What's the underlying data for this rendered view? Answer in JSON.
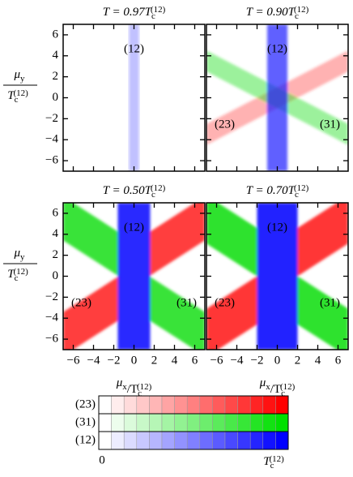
{
  "chart_data": [
    {
      "type": "heatmap",
      "title": [
        "T = 0.97T",
        "c",
        "(12)"
      ],
      "regions": [
        "(12)"
      ],
      "xlim": [
        -7,
        7
      ],
      "ylim": [
        -7,
        7
      ],
      "yticks": [
        {
          "value": -6,
          "label": "−6"
        },
        {
          "value": -4,
          "label": "−4"
        },
        {
          "value": -2,
          "label": "−2"
        },
        0,
        2,
        4,
        6
      ],
      "ylabel": {
        "top": [
          "μ",
          "y"
        ],
        "bottom": [
          "T",
          "c",
          "(12)"
        ]
      }
    },
    {
      "type": "heatmap",
      "title": [
        "T = 0.90T",
        "c",
        "(12)"
      ],
      "regions": [
        "(12)",
        "(23)",
        "(31)"
      ],
      "xlim": [
        -7,
        7
      ],
      "ylim": [
        -7,
        7
      ]
    },
    {
      "type": "heatmap",
      "title": [
        "T = 0.50T",
        "c",
        "(12)"
      ],
      "regions": [
        "(12)",
        "(23)",
        "(31)"
      ],
      "xlim": [
        -7,
        7
      ],
      "ylim": [
        -7,
        7
      ],
      "xticks": [
        {
          "value": -6,
          "label": "−6"
        },
        {
          "value": -4,
          "label": "−4"
        },
        {
          "value": -2,
          "label": "−2"
        },
        0,
        2,
        4,
        6
      ],
      "yticks": [
        {
          "value": -6,
          "label": "−6"
        },
        {
          "value": -4,
          "label": "−4"
        },
        {
          "value": -2,
          "label": "−2"
        },
        0,
        2,
        4,
        6
      ],
      "xlabel": [
        "μ",
        "x",
        "/T",
        "c",
        "(12)"
      ],
      "ylabel": {
        "top": [
          "μ",
          "y"
        ],
        "bottom": [
          "T",
          "c",
          "(12)"
        ]
      }
    },
    {
      "type": "heatmap",
      "title": [
        "T = 0.70T",
        "c",
        "(12)"
      ],
      "regions": [
        "(12)",
        "(23)",
        "(31)"
      ],
      "xlim": [
        -7,
        7
      ],
      "ylim": [
        -7,
        7
      ],
      "xticks": [
        {
          "value": -6,
          "label": "−6"
        },
        {
          "value": -4,
          "label": "−4"
        },
        {
          "value": -2,
          "label": "−2"
        },
        0,
        2,
        4,
        6
      ],
      "xlabel": [
        "μ",
        "x",
        "/T",
        "c",
        "(12)"
      ]
    }
  ],
  "colorbar": {
    "rows": [
      {
        "name": "(23)",
        "color": "#ff0000"
      },
      {
        "name": "(31)",
        "color": "#00e000"
      },
      {
        "name": "(12)",
        "color": "#0000ff"
      }
    ],
    "min_label": "0",
    "max_label": [
      "T",
      "c",
      "(12)"
    ]
  }
}
